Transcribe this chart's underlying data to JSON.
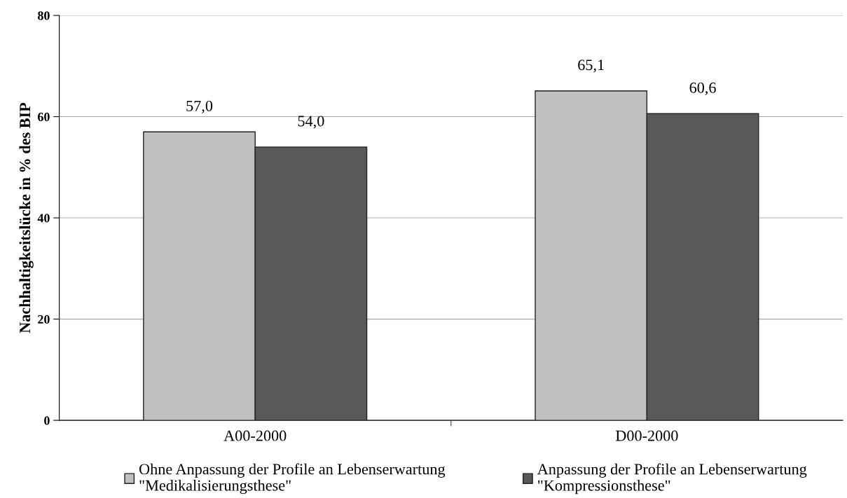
{
  "chart_data": {
    "type": "bar",
    "ylabel": "Nachhaltigkeitslücke in % des BIP",
    "categories": [
      "A00-2000",
      "D00-2000"
    ],
    "series": [
      {
        "name": "Ohne Anpassung der Profile an Lebenserwartung\n\"Medikalisierungsthese\"",
        "color": "#c0c0c0",
        "values": [
          57.0,
          65.1
        ],
        "value_labels": [
          "57,0",
          "65,1"
        ]
      },
      {
        "name": "Anpassung der Profile an Lebenserwartung\n\"Kompressionsthese\"",
        "color": "#595959",
        "values": [
          54.0,
          60.6
        ],
        "value_labels": [
          "54,0",
          "60,6"
        ]
      }
    ],
    "ylim": [
      0,
      80
    ],
    "yticks": [
      0,
      20,
      40,
      60,
      80
    ],
    "grid": "y",
    "legend": "bottom"
  }
}
